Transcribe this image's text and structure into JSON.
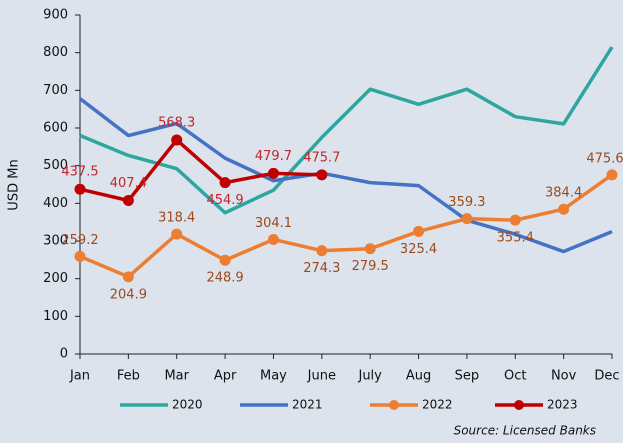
{
  "chart_data": {
    "type": "line",
    "y_label": "USD Mn",
    "source": "Source: Licensed Banks",
    "categories": [
      "Jan",
      "Feb",
      "Mar",
      "Apr",
      "May",
      "June",
      "July",
      "Aug",
      "Sep",
      "Oct",
      "Nov",
      "Dec"
    ],
    "ylim": [
      0,
      900
    ],
    "yticks": [
      0,
      100,
      200,
      300,
      400,
      500,
      600,
      700,
      800,
      900
    ],
    "legend": "bottom",
    "series": [
      {
        "name": "2020",
        "color": "#2ea6a0",
        "values": [
          580,
          527,
          492,
          375,
          435,
          575,
          703,
          663,
          703,
          630,
          611,
          815
        ]
      },
      {
        "name": "2021",
        "color": "#4472c4",
        "values": [
          678,
          580,
          612,
          520,
          460,
          480,
          455,
          447,
          355,
          318,
          272,
          325
        ]
      },
      {
        "name": "2022",
        "color": "#ed7d31",
        "markers": true,
        "data_labels": true,
        "label_color": "#9c4a1a",
        "values": [
          259.2,
          204.9,
          318.4,
          248.9,
          304.1,
          274.3,
          279.5,
          325.4,
          359.3,
          355.4,
          384.4,
          475.6
        ]
      },
      {
        "name": "2023",
        "color": "#c00000",
        "markers": true,
        "data_labels": true,
        "label_color": "#c0262d",
        "values": [
          437.5,
          407.4,
          568.3,
          454.9,
          479.7,
          475.7,
          null,
          null,
          null,
          null,
          null,
          null
        ]
      }
    ]
  }
}
